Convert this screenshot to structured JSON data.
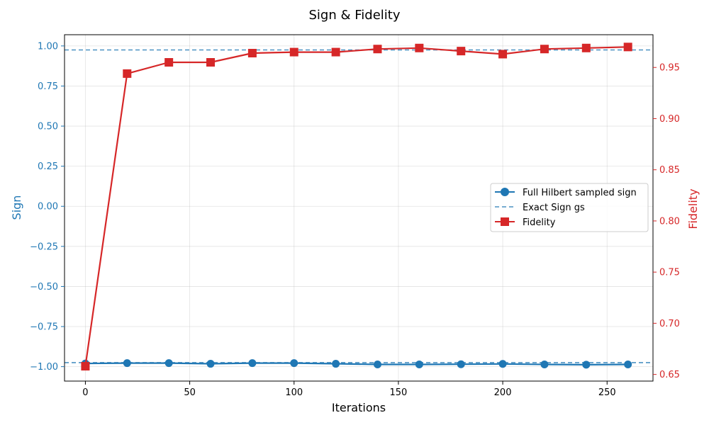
{
  "chart_data": {
    "type": "line",
    "title": "Sign & Fidelity",
    "xlabel": "Iterations",
    "ylabel_left": "Sign",
    "ylabel_right": "Fidelity",
    "xlim": [
      -10,
      272
    ],
    "ylim_left": [
      -1.09,
      1.07
    ],
    "ylim_right": [
      0.6435,
      0.982
    ],
    "x_ticks": [
      0,
      50,
      100,
      150,
      200,
      250
    ],
    "y_left_ticks": [
      "1.00",
      "0.75",
      "0.50",
      "0.25",
      "0.00",
      "−0.25",
      "−0.50",
      "−0.75",
      "−1.00"
    ],
    "y_left_tick_values": [
      1.0,
      0.75,
      0.5,
      0.25,
      0.0,
      -0.25,
      -0.5,
      -0.75,
      -1.0
    ],
    "y_right_ticks": [
      "0.95",
      "0.90",
      "0.85",
      "0.80",
      "0.75",
      "0.70",
      "0.65"
    ],
    "y_right_tick_values": [
      0.95,
      0.9,
      0.85,
      0.8,
      0.75,
      0.7,
      0.65
    ],
    "grid": true,
    "legend_position": "center-right",
    "x": [
      0,
      20,
      40,
      60,
      80,
      100,
      120,
      140,
      160,
      180,
      200,
      220,
      240,
      260
    ],
    "series": [
      {
        "name": "Full Hilbert sampled sign",
        "axis": "left",
        "color": "#1f77b4",
        "marker": "circle",
        "values": [
          -0.98,
          -0.978,
          -0.978,
          -0.982,
          -0.978,
          -0.978,
          -0.982,
          -0.986,
          -0.986,
          -0.985,
          -0.983,
          -0.986,
          -0.988,
          -0.986
        ]
      },
      {
        "name": "Fidelity",
        "axis": "right",
        "color": "#d62728",
        "marker": "square",
        "values": [
          0.658,
          0.944,
          0.955,
          0.955,
          0.964,
          0.965,
          0.965,
          0.968,
          0.969,
          0.966,
          0.963,
          0.968,
          0.969,
          0.97
        ]
      }
    ],
    "reference_lines": [
      {
        "name": "Exact Sign gs",
        "axis": "left",
        "color": "#1f77b4",
        "style": "dashed",
        "values": [
          0.975,
          -0.975
        ]
      }
    ]
  }
}
